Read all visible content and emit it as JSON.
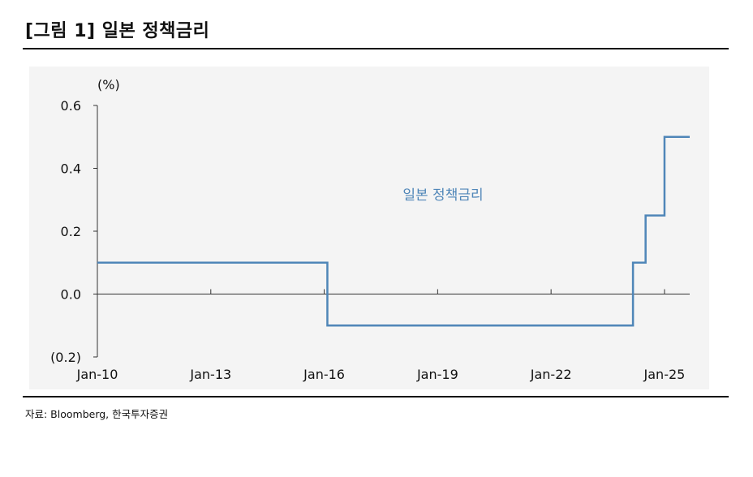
{
  "title": "[그림 1] 일본 정책금리",
  "source": "자료: Bloomberg,  한국투자증권",
  "chart_data": {
    "type": "line",
    "step": true,
    "unit_label": "(%)",
    "ylim": [
      -0.2,
      0.6
    ],
    "yticks": [
      0.6,
      0.4,
      0.2,
      0.0,
      -0.2
    ],
    "ytick_labels": [
      "0.6",
      "0.4",
      "0.2",
      "0.0",
      "(0.2)"
    ],
    "xlim": [
      "2010-01",
      "2025-09"
    ],
    "xticks": [
      "2010-01",
      "2013-01",
      "2016-01",
      "2019-01",
      "2022-01",
      "2025-01"
    ],
    "xtick_labels": [
      "Jan-10",
      "Jan-13",
      "Jan-16",
      "Jan-19",
      "Jan-22",
      "Jan-25"
    ],
    "series": [
      {
        "name": "일본 정책금리",
        "color": "#4f86b8",
        "points": [
          {
            "x": "2010-01",
            "y": 0.1
          },
          {
            "x": "2016-02",
            "y": -0.1
          },
          {
            "x": "2024-03",
            "y": 0.1
          },
          {
            "x": "2024-07",
            "y": 0.25
          },
          {
            "x": "2025-01",
            "y": 0.5
          },
          {
            "x": "2025-09",
            "y": 0.5
          }
        ]
      }
    ],
    "grid": false,
    "legend": "inline label near plot center"
  }
}
